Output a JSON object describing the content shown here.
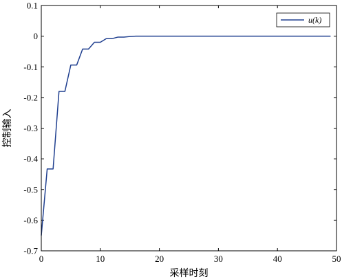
{
  "chart_data": {
    "type": "line",
    "title": "",
    "xlabel": "采样时刻",
    "ylabel": "控制输入",
    "xlim": [
      0,
      50
    ],
    "ylim": [
      -0.7,
      0.1
    ],
    "xticks": [
      0,
      10,
      20,
      30,
      40,
      50
    ],
    "yticks": [
      0.1,
      0,
      -0.1,
      -0.2,
      -0.3,
      -0.4,
      -0.5,
      -0.6,
      -0.7
    ],
    "grid": false,
    "legend": {
      "position": "top-right"
    },
    "series": [
      {
        "name": "u(k)",
        "color": "#1f3f8f",
        "interpolation": "linear-with-step-plateaus",
        "x": [
          0,
          1,
          2,
          3,
          4,
          5,
          6,
          7,
          8,
          9,
          10,
          11,
          12,
          13,
          14,
          15,
          16,
          17,
          18,
          19,
          20,
          25,
          30,
          35,
          40,
          45,
          49
        ],
        "values": [
          -0.65,
          -0.433,
          -0.433,
          -0.18,
          -0.18,
          -0.094,
          -0.094,
          -0.042,
          -0.042,
          -0.02,
          -0.02,
          -0.008,
          -0.008,
          -0.003,
          -0.003,
          -0.001,
          0,
          0,
          0,
          0,
          0,
          0,
          0,
          0,
          0,
          0,
          0
        ]
      }
    ]
  }
}
